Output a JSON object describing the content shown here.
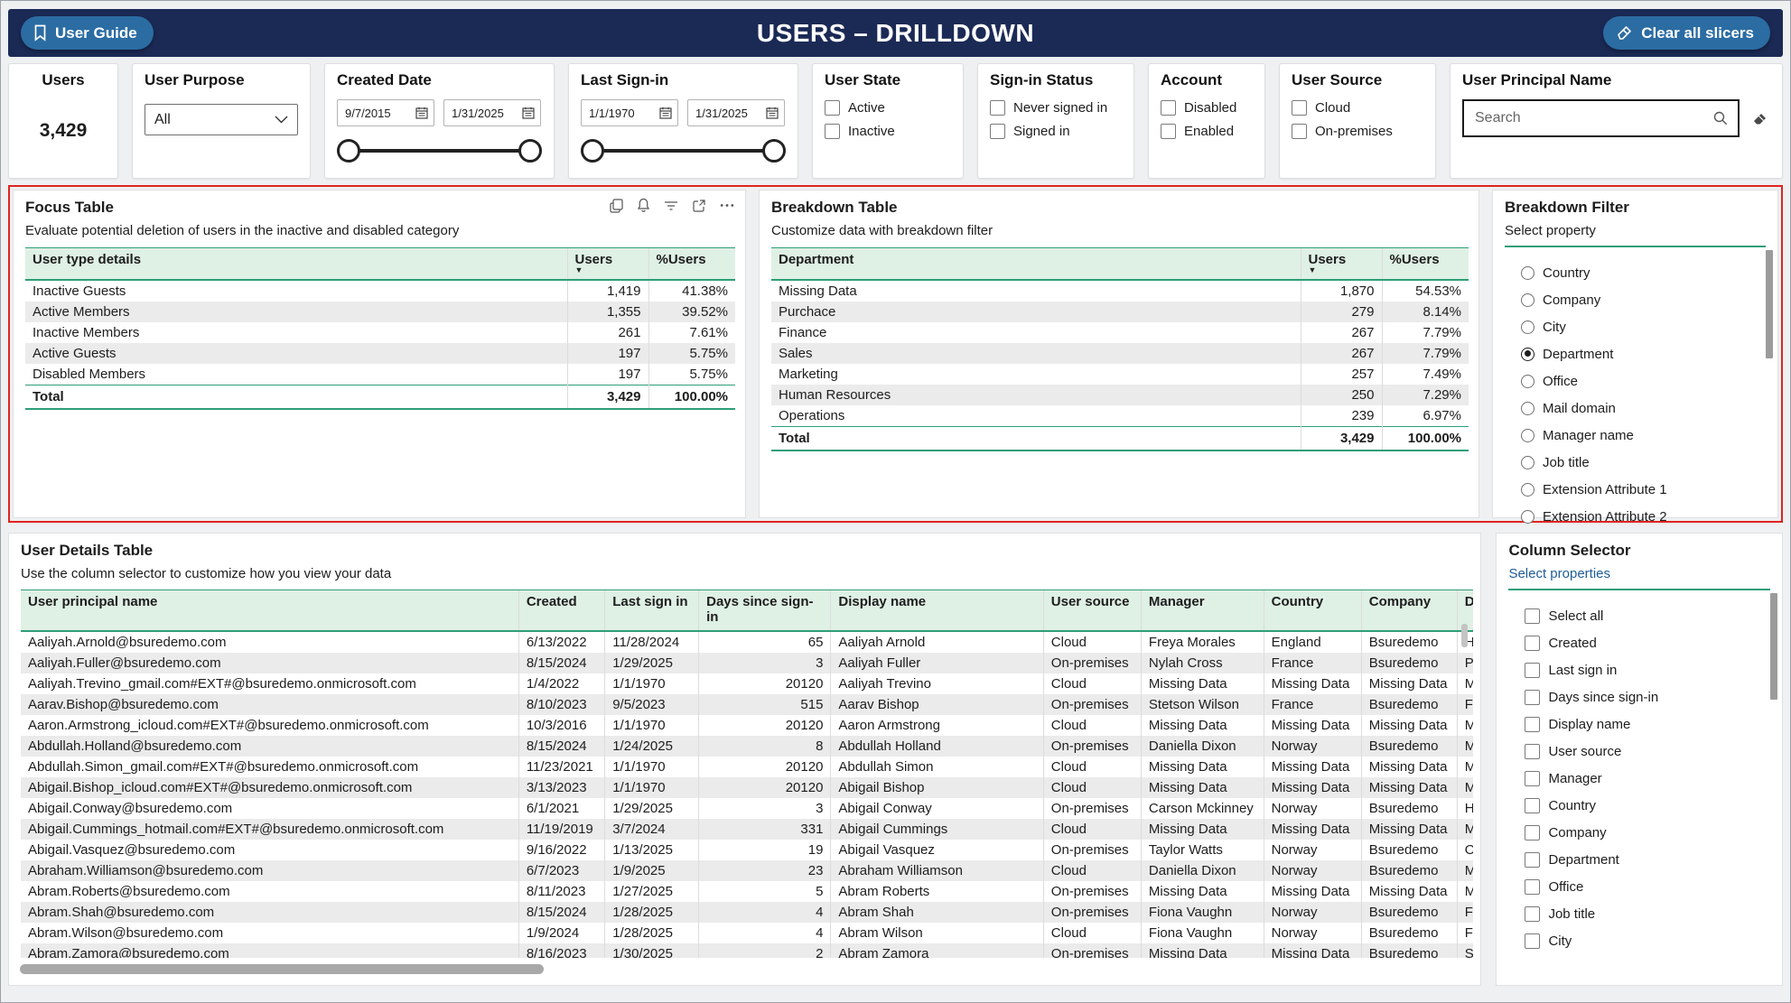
{
  "header": {
    "title": "USERS – DRILLDOWN",
    "user_guide_label": "User Guide",
    "clear_slicers_label": "Clear all slicers"
  },
  "colors": {
    "navy": "#1b2a55",
    "button_blue": "#2b6ca3",
    "table_header_green": "#dff0e4",
    "green_border": "#2e9e77",
    "red_outline": "#e02420",
    "row_alt": "#ebebeb"
  },
  "icons": {
    "bookmark": "bookmark-icon",
    "eraser": "eraser-icon",
    "calendar": "calendar-icon",
    "chevron_down": "chevron-down-icon",
    "search": "search-icon",
    "copy": "copy-icon",
    "alert": "alert-icon",
    "filter": "filter-icon",
    "focus_mode": "focus-mode-icon",
    "more_options": "more-options-icon",
    "sort_desc": "sort-desc-icon"
  },
  "filters": {
    "users_card": {
      "label": "Users",
      "value": "3,429"
    },
    "user_purpose": {
      "label": "User Purpose",
      "value": "All"
    },
    "created_date": {
      "label": "Created Date",
      "start": "9/7/2015",
      "end": "1/31/2025"
    },
    "last_sign_in": {
      "label": "Last Sign-in",
      "start": "1/1/1970",
      "end": "1/31/2025"
    },
    "user_state": {
      "label": "User State",
      "options": [
        "Active",
        "Inactive"
      ]
    },
    "sign_in_status": {
      "label": "Sign-in Status",
      "options": [
        "Never signed in",
        "Signed in"
      ]
    },
    "account": {
      "label": "Account",
      "options": [
        "Disabled",
        "Enabled"
      ]
    },
    "user_source": {
      "label": "User Source",
      "options": [
        "Cloud",
        "On-premises"
      ]
    },
    "user_principal_name": {
      "label": "User Principal Name",
      "placeholder": "Search"
    }
  },
  "focus_table": {
    "title": "Focus Table",
    "subtitle": "Evaluate potential deletion of users in the inactive and disabled category",
    "columns": [
      "User type details",
      "Users",
      "%Users"
    ],
    "sort_col": 1,
    "rows": [
      [
        "Inactive Guests",
        "1,419",
        "41.38%"
      ],
      [
        "Active Members",
        "1,355",
        "39.52%"
      ],
      [
        "Inactive Members",
        "261",
        "7.61%"
      ],
      [
        "Active Guests",
        "197",
        "5.75%"
      ],
      [
        "Disabled Members",
        "197",
        "5.75%"
      ]
    ],
    "total": [
      "Total",
      "3,429",
      "100.00%"
    ]
  },
  "breakdown_table": {
    "title": "Breakdown Table",
    "subtitle": "Customize data with breakdown filter",
    "columns": [
      "Department",
      "Users",
      "%Users"
    ],
    "sort_col": 1,
    "rows": [
      [
        "Missing Data",
        "1,870",
        "54.53%"
      ],
      [
        "Purchace",
        "279",
        "8.14%"
      ],
      [
        "Finance",
        "267",
        "7.79%"
      ],
      [
        "Sales",
        "267",
        "7.79%"
      ],
      [
        "Marketing",
        "257",
        "7.49%"
      ],
      [
        "Human Resources",
        "250",
        "7.29%"
      ],
      [
        "Operations",
        "239",
        "6.97%"
      ]
    ],
    "total": [
      "Total",
      "3,429",
      "100.00%"
    ]
  },
  "breakdown_filter": {
    "title": "Breakdown Filter",
    "subtitle": "Select property",
    "selected": "Department",
    "options": [
      "Country",
      "Company",
      "City",
      "Department",
      "Office",
      "Mail domain",
      "Manager name",
      "Job title",
      "Extension Attribute 1",
      "Extension Attribute 2"
    ]
  },
  "user_details": {
    "title": "User Details Table",
    "subtitle": "Use the column selector to customize how you view your data",
    "columns": [
      "User principal name",
      "Created",
      "Last sign in",
      "Days since sign-in",
      "Display name",
      "User source",
      "Manager",
      "Country",
      "Company",
      "Department"
    ],
    "sort_col": -1,
    "rows": [
      [
        "Aaliyah.Arnold@bsuredemo.com",
        "6/13/2022",
        "11/28/2024",
        "65",
        "Aaliyah Arnold",
        "Cloud",
        "Freya Morales",
        "England",
        "Bsuredemo",
        "Human Resources"
      ],
      [
        "Aaliyah.Fuller@bsuredemo.com",
        "8/15/2024",
        "1/29/2025",
        "3",
        "Aaliyah Fuller",
        "On-premises",
        "Nylah Cross",
        "France",
        "Bsuredemo",
        "Purchace"
      ],
      [
        "Aaliyah.Trevino_gmail.com#EXT#@bsuredemo.onmicrosoft.com",
        "1/4/2022",
        "1/1/1970",
        "20120",
        "Aaliyah Trevino",
        "Cloud",
        "Missing Data",
        "Missing Data",
        "Missing Data",
        "Missing Data"
      ],
      [
        "Aarav.Bishop@bsuredemo.com",
        "8/10/2023",
        "9/5/2023",
        "515",
        "Aarav Bishop",
        "On-premises",
        "Stetson Wilson",
        "France",
        "Bsuredemo",
        "Finance"
      ],
      [
        "Aaron.Armstrong_icloud.com#EXT#@bsuredemo.onmicrosoft.com",
        "10/3/2016",
        "1/1/1970",
        "20120",
        "Aaron Armstrong",
        "Cloud",
        "Missing Data",
        "Missing Data",
        "Missing Data",
        "Missing Data"
      ],
      [
        "Abdullah.Holland@bsuredemo.com",
        "8/15/2024",
        "1/24/2025",
        "8",
        "Abdullah Holland",
        "On-premises",
        "Daniella Dixon",
        "Norway",
        "Bsuredemo",
        "Marketing"
      ],
      [
        "Abdullah.Simon_gmail.com#EXT#@bsuredemo.onmicrosoft.com",
        "11/23/2021",
        "1/1/1970",
        "20120",
        "Abdullah Simon",
        "Cloud",
        "Missing Data",
        "Missing Data",
        "Missing Data",
        "Missing Data"
      ],
      [
        "Abigail.Bishop_icloud.com#EXT#@bsuredemo.onmicrosoft.com",
        "3/13/2023",
        "1/1/1970",
        "20120",
        "Abigail Bishop",
        "Cloud",
        "Missing Data",
        "Missing Data",
        "Missing Data",
        "Missing Data"
      ],
      [
        "Abigail.Conway@bsuredemo.com",
        "6/1/2021",
        "1/29/2025",
        "3",
        "Abigail Conway",
        "On-premises",
        "Carson Mckinney",
        "Norway",
        "Bsuredemo",
        "Human Resources"
      ],
      [
        "Abigail.Cummings_hotmail.com#EXT#@bsuredemo.onmicrosoft.com",
        "11/19/2019",
        "3/7/2024",
        "331",
        "Abigail Cummings",
        "Cloud",
        "Missing Data",
        "Missing Data",
        "Missing Data",
        "Missing Data"
      ],
      [
        "Abigail.Vasquez@bsuredemo.com",
        "9/16/2022",
        "1/13/2025",
        "19",
        "Abigail Vasquez",
        "On-premises",
        "Taylor Watts",
        "Norway",
        "Bsuredemo",
        "Operations"
      ],
      [
        "Abraham.Williamson@bsuredemo.com",
        "6/7/2023",
        "1/9/2025",
        "23",
        "Abraham Williamson",
        "Cloud",
        "Daniella Dixon",
        "Norway",
        "Bsuredemo",
        "Marketing"
      ],
      [
        "Abram.Roberts@bsuredemo.com",
        "8/11/2023",
        "1/27/2025",
        "5",
        "Abram Roberts",
        "On-premises",
        "Missing Data",
        "Missing Data",
        "Missing Data",
        "Missing Data"
      ],
      [
        "Abram.Shah@bsuredemo.com",
        "8/15/2024",
        "1/28/2025",
        "4",
        "Abram Shah",
        "On-premises",
        "Fiona Vaughn",
        "Norway",
        "Bsuredemo",
        "Finance"
      ],
      [
        "Abram.Wilson@bsuredemo.com",
        "1/9/2024",
        "1/28/2025",
        "4",
        "Abram Wilson",
        "Cloud",
        "Fiona Vaughn",
        "Norway",
        "Bsuredemo",
        "Finance"
      ],
      [
        "Abram.Zamora@bsuredemo.com",
        "8/16/2023",
        "1/30/2025",
        "2",
        "Abram Zamora",
        "On-premises",
        "Missing Data",
        "Missing Data",
        "Bsuredemo",
        "Sales"
      ]
    ]
  },
  "column_selector": {
    "title": "Column Selector",
    "subtitle": "Select properties",
    "options": [
      "Select all",
      "Created",
      "Last sign in",
      "Days since sign-in",
      "Display name",
      "User source",
      "Manager",
      "Country",
      "Company",
      "Department",
      "Office",
      "Job title",
      "City"
    ]
  }
}
